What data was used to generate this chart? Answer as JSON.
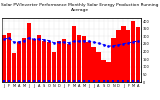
{
  "title": "Solar PV/Inverter Performance Monthly Solar Energy Production Running Average",
  "bar_values": [
    310,
    320,
    190,
    260,
    290,
    390,
    280,
    310,
    270,
    260,
    195,
    270,
    280,
    250,
    370,
    310,
    300,
    260,
    230,
    200,
    145,
    130,
    290,
    340,
    370,
    340,
    400,
    360
  ],
  "running_avg": [
    280,
    290,
    260,
    265,
    270,
    290,
    280,
    282,
    278,
    272,
    258,
    260,
    262,
    258,
    268,
    268,
    270,
    268,
    262,
    255,
    245,
    235,
    238,
    244,
    252,
    256,
    264,
    268
  ],
  "bar_color": "#FF0000",
  "avg_color": "#0000FF",
  "background_color": "#FFFFFF",
  "grid_color": "#C0C0C0",
  "ylim": [
    0,
    420
  ],
  "n_bars": 28,
  "title_fontsize": 3.2,
  "tick_fontsize": 2.5,
  "dpi": 100,
  "yticks": [
    0,
    50,
    100,
    150,
    200,
    250,
    300,
    350,
    400
  ],
  "x_labels": [
    "J",
    "F",
    "M",
    "A",
    "M",
    "J",
    "J",
    "A",
    "S",
    "O",
    "N",
    "D",
    "J",
    "F",
    "M",
    "A",
    "M",
    "J",
    "J",
    "A",
    "S",
    "O",
    "N",
    "D",
    "J",
    "F",
    "M",
    "A"
  ]
}
